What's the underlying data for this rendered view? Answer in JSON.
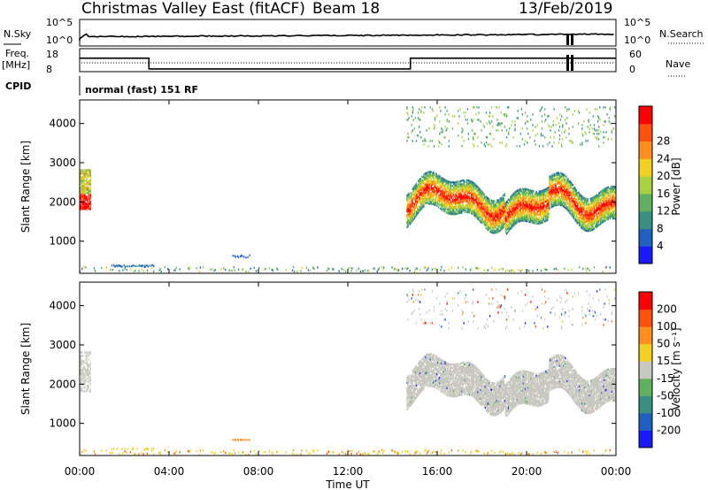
{
  "header": {
    "station": "Christmas Valley East (fitACF)",
    "beam": "Beam 18",
    "date": "13/Feb/2019"
  },
  "top_panels": {
    "noise_left_label": "N.Sky",
    "noise_left_ticks": [
      "10^5",
      "10^0"
    ],
    "noise_right_label": "N.Search",
    "noise_right_ticks": [
      "10^5",
      "10^0"
    ],
    "freq_label": "Freq.",
    "freq_unit": "[MHz]",
    "freq_ticks": [
      "18",
      "8"
    ],
    "nave_label": "Nave",
    "nave_ticks": [
      "60",
      "0"
    ],
    "cpid_label": "CPID",
    "cpid_text": "normal (fast) 151 RF"
  },
  "colors": {
    "power_scale": [
      "#1a1aff",
      "#2060c0",
      "#3a9080",
      "#60b060",
      "#a8d040",
      "#f0d020",
      "#ff9020",
      "#ff5010",
      "#ff0000"
    ],
    "velocity_scale": [
      "#1a1aff",
      "#2060c0",
      "#3a9080",
      "#60b060",
      "#c8c8c0",
      "#f0d020",
      "#ff9020",
      "#ff5010",
      "#ff0000"
    ],
    "ground_scatter": "#c8c8c0"
  },
  "chart_data": [
    {
      "type": "heatmap",
      "panel": "power",
      "xlabel": "",
      "ylabel": "Slant Range [km]",
      "ylim": [
        180,
        4600
      ],
      "yticks": [
        "1000",
        "2000",
        "3000",
        "4000"
      ],
      "colorbar_label": "Power [dB]",
      "colorbar_ticks": [
        "4",
        "8",
        "12",
        "16",
        "20",
        "24",
        "28"
      ],
      "colorbar_range": [
        0,
        32
      ]
    },
    {
      "type": "heatmap",
      "panel": "velocity",
      "xlabel": "Time UT",
      "ylabel": "Slant Range [km]",
      "ylim": [
        180,
        4600
      ],
      "yticks": [
        "1000",
        "2000",
        "3000",
        "4000"
      ],
      "xticks": [
        "00:00",
        "04:00",
        "08:00",
        "12:00",
        "16:00",
        "20:00",
        "00:00"
      ],
      "xlim_hours": [
        0,
        24
      ],
      "colorbar_label": "Velocity [m s⁻¹]",
      "colorbar_ticks": [
        "200",
        "100",
        "50",
        "15",
        "-15",
        "-50",
        "-100",
        "-200"
      ]
    },
    {
      "type": "line",
      "panel": "frequency",
      "series": [
        {
          "name": "",
          "x": [
            0,
            0.1,
            3.1,
            14.8,
            24
          ],
          "values": [
            14,
            14,
            8.5,
            14,
            14
          ]
        }
      ]
    }
  ]
}
